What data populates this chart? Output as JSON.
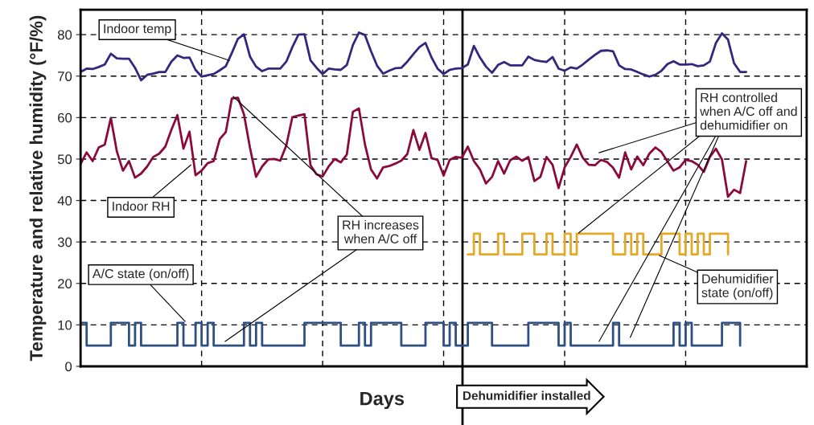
{
  "chart_data": {
    "type": "line",
    "xlabel": "Days",
    "ylabel": "Temperature and relative humidity (°F/%)",
    "categories": [
      null,
      null,
      null,
      null,
      null,
      null,
      null,
      null,
      null,
      null,
      null,
      null,
      null,
      null,
      null,
      null,
      null,
      null,
      null,
      null,
      null,
      null,
      null,
      null,
      null,
      null,
      null,
      null,
      null,
      null,
      null,
      null,
      null,
      null,
      null,
      null,
      null,
      null,
      null,
      null,
      null,
      null,
      null,
      null,
      null,
      null,
      null,
      null,
      null,
      null,
      null,
      null,
      null,
      null,
      null,
      null,
      null,
      null,
      null,
      null,
      null,
      null,
      null,
      null,
      null,
      null,
      null,
      null,
      null,
      null,
      null,
      null,
      null,
      null,
      null,
      null,
      null,
      null,
      null,
      null,
      null,
      null,
      null,
      null,
      null,
      null,
      null,
      null,
      null,
      null,
      null,
      null,
      null,
      null,
      null,
      null,
      null,
      null,
      null,
      null,
      null,
      null,
      null,
      null,
      null,
      null,
      null,
      null,
      null,
      null,
      null,
      null,
      null,
      null,
      null,
      null,
      null,
      null,
      null,
      null,
      null
    ],
    "ylim": [
      0,
      86
    ],
    "yticks": [
      0,
      10,
      20,
      30,
      40,
      50,
      60,
      70,
      80
    ],
    "tick_labels": "y",
    "grid": true,
    "legend": false,
    "series": [
      {
        "color": "#35267e",
        "values": [
          71.0,
          71.8,
          71.7,
          72.2,
          72.8,
          75.4,
          74.3,
          74.2,
          74.2,
          72.0,
          69.0,
          70.3,
          70.6,
          71.0,
          71.0,
          73.5,
          75.0,
          74.4,
          74.5,
          71.5,
          69.9,
          70.2,
          70.5,
          71.4,
          72.4,
          75.6,
          79.0,
          80.1,
          74.7,
          72.3,
          71.2,
          71.8,
          71.8,
          71.8,
          73.5,
          77.0,
          80.0,
          80.1,
          73.8,
          72.0,
          70.5,
          71.8,
          71.6,
          71.5,
          72.7,
          77.5,
          80.5,
          79.9,
          76.0,
          72.5,
          70.6,
          71.3,
          71.9,
          72.0,
          73.5,
          75.3,
          77.0,
          78.0,
          74.5,
          71.8,
          70.5,
          71.5,
          71.8,
          71.9,
          72.8,
          77.3,
          74.5,
          72.3,
          70.8,
          72.7,
          73.4,
          72.6,
          72.6,
          72.6,
          74.7,
          73.9,
          73.6,
          73.4,
          74.6,
          71.8,
          71.3,
          72.1,
          71.8,
          72.8,
          74.0,
          75.1,
          76.1,
          76.2,
          76.0,
          72.6,
          71.7,
          71.6,
          71.0,
          70.4,
          69.9,
          70.3,
          71.3,
          72.9,
          73.6,
          72.8,
          72.8,
          72.9,
          72.4,
          72.6,
          73.5,
          78.0,
          80.3,
          78.8,
          73.1,
          71.0,
          71.0,
          null,
          null,
          null,
          null,
          null,
          null,
          null,
          null,
          null,
          null
        ]
      },
      {
        "color": "#8b0a3c",
        "values": [
          48.8,
          51.6,
          49.5,
          52.8,
          53.5,
          59.9,
          51.8,
          47.2,
          49.5,
          45.5,
          46.5,
          48.2,
          50.5,
          51.3,
          53.0,
          57.0,
          60.6,
          52.5,
          56.6,
          46.1,
          47.2,
          49.0,
          49.5,
          54.8,
          56.5,
          64.6,
          64.8,
          60.8,
          52.7,
          45.7,
          48.2,
          49.9,
          50.0,
          49.6,
          53.3,
          60.1,
          60.5,
          60.8,
          48.5,
          46.3,
          45.8,
          48.2,
          50.0,
          49.2,
          51.1,
          61.4,
          62.2,
          53.5,
          47.5,
          45.3,
          48.0,
          48.3,
          48.9,
          49.6,
          51.2,
          57.0,
          52.2,
          56.3,
          50.2,
          49.8,
          46.0,
          49.8,
          50.5,
          50.3,
          53.0,
          49.5,
          47.5,
          44.1,
          45.7,
          49.5,
          46.5,
          49.7,
          50.6,
          49.6,
          50.5,
          44.7,
          45.7,
          50.5,
          48.6,
          43.0,
          48.0,
          50.5,
          53.5,
          50.3,
          48.6,
          48.5,
          49.8,
          49.3,
          47.9,
          45.5,
          51.6,
          47.5,
          50.6,
          48.5,
          51.3,
          52.8,
          51.7,
          49.4,
          47.2,
          48.0,
          49.8,
          49.5,
          48.6,
          46.9,
          50.5,
          52.5,
          49.9,
          40.9,
          42.6,
          41.8,
          49.5,
          null,
          null,
          null,
          null,
          null,
          null,
          null,
          null,
          null,
          null
        ]
      },
      {
        "type": "step",
        "color": "#e3a927",
        "values": [
          null,
          null,
          null,
          null,
          null,
          null,
          null,
          null,
          null,
          null,
          null,
          null,
          null,
          null,
          null,
          null,
          null,
          null,
          null,
          null,
          null,
          null,
          null,
          null,
          null,
          null,
          null,
          null,
          null,
          null,
          null,
          null,
          null,
          null,
          null,
          null,
          null,
          null,
          null,
          null,
          null,
          null,
          null,
          null,
          null,
          null,
          null,
          null,
          null,
          null,
          null,
          null,
          null,
          null,
          null,
          null,
          null,
          null,
          null,
          null,
          null,
          null,
          null,
          null,
          27,
          32,
          27,
          27,
          27,
          32,
          27,
          27,
          27,
          32,
          32,
          27,
          27,
          32,
          27,
          27,
          32,
          27,
          32,
          32,
          32,
          32,
          32,
          32,
          27,
          27,
          32,
          27,
          32,
          27,
          27,
          27,
          32,
          32,
          32,
          27,
          32,
          27,
          32,
          27,
          32,
          32,
          32,
          27,
          null,
          null,
          null,
          null,
          null,
          null,
          null,
          null,
          null,
          null,
          null,
          null,
          null
        ]
      },
      {
        "type": "step",
        "color": "#2e4f82",
        "values": [
          10.5,
          5,
          5,
          5,
          5,
          10.5,
          10.5,
          10.5,
          5,
          10.5,
          5,
          5,
          5,
          5,
          5,
          5,
          10.5,
          5,
          5,
          10.5,
          5,
          10.5,
          5,
          5,
          5,
          5,
          5,
          10.5,
          5,
          10.5,
          5,
          5,
          5,
          5,
          5,
          5,
          5,
          10.5,
          10.5,
          10.5,
          10.5,
          10.5,
          10.5,
          5,
          5,
          5,
          10.5,
          5,
          10.5,
          10.5,
          10.5,
          10.5,
          10.5,
          5,
          5,
          5,
          5,
          10.5,
          10.5,
          10.5,
          5,
          10.5,
          5,
          5,
          10.5,
          10.5,
          10.5,
          10.5,
          5,
          5,
          5,
          5,
          5,
          5,
          10.5,
          10.5,
          10.5,
          10.5,
          10.5,
          5,
          10.5,
          5,
          5,
          5,
          5,
          5,
          5,
          5,
          10.5,
          5,
          5,
          5,
          5,
          5,
          5,
          5,
          5,
          5,
          10.5,
          5,
          10.5,
          5,
          5,
          5,
          5,
          5,
          10.5,
          10.5,
          10.5,
          5,
          null,
          null,
          null,
          null,
          null,
          null,
          null,
          null,
          null,
          null,
          null
        ]
      }
    ],
    "annotations": [
      "Indoor temp",
      "Indoor RH",
      "RH increases\nwhen A/C off",
      "A/C state (on/off)",
      "RH controlled\nwhen A/C off and\ndehumidifier on",
      "Dehumidifier\nstate (on/off)",
      "Dehumidifier installed"
    ]
  }
}
